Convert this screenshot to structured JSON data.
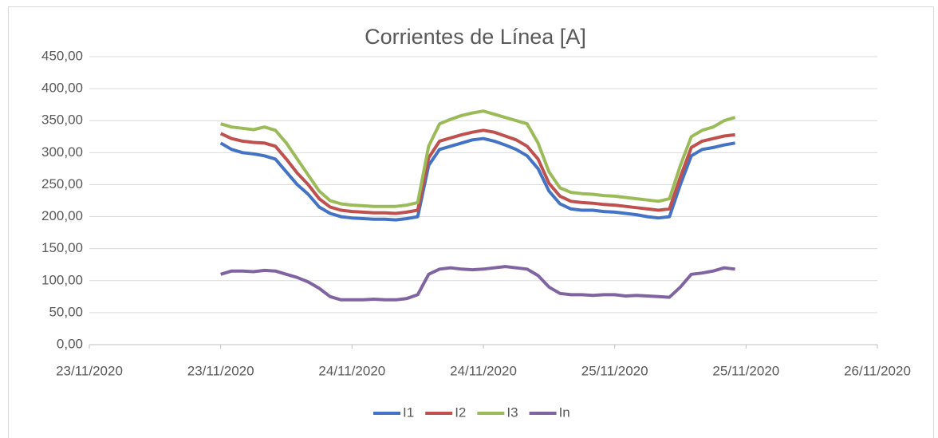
{
  "chart_data": {
    "type": "line",
    "title": "Corrientes de Línea [A]",
    "x": [
      44158.5,
      44158.5417,
      44158.5833,
      44158.625,
      44158.6667,
      44158.7083,
      44158.75,
      44158.7917,
      44158.8333,
      44158.875,
      44158.9167,
      44158.9583,
      44159,
      44159.0417,
      44159.0833,
      44159.125,
      44159.1667,
      44159.2083,
      44159.25,
      44159.2917,
      44159.3333,
      44159.375,
      44159.4167,
      44159.4583,
      44159.5,
      44159.5417,
      44159.5833,
      44159.625,
      44159.6667,
      44159.7083,
      44159.75,
      44159.7917,
      44159.8333,
      44159.875,
      44159.9167,
      44159.9583,
      44160,
      44160.0417,
      44160.0833,
      44160.125,
      44160.1667,
      44160.2083,
      44160.25,
      44160.2917,
      44160.3333,
      44160.375,
      44160.4167,
      44160.4583
    ],
    "series": [
      {
        "name": "I1",
        "color": "#4472c4",
        "values": [
          315,
          305,
          300,
          298,
          295,
          290,
          270,
          250,
          235,
          215,
          205,
          200,
          198,
          197,
          196,
          196,
          195,
          197,
          200,
          280,
          305,
          310,
          315,
          320,
          322,
          318,
          312,
          305,
          295,
          275,
          240,
          220,
          212,
          210,
          210,
          208,
          207,
          205,
          203,
          200,
          198,
          200,
          250,
          295,
          305,
          308,
          312,
          315
        ]
      },
      {
        "name": "I2",
        "color": "#c0504d",
        "values": [
          330,
          322,
          318,
          316,
          315,
          310,
          290,
          268,
          250,
          228,
          215,
          210,
          208,
          207,
          206,
          206,
          205,
          207,
          210,
          292,
          318,
          323,
          328,
          332,
          335,
          332,
          326,
          320,
          310,
          290,
          252,
          232,
          224,
          222,
          221,
          219,
          218,
          216,
          214,
          212,
          210,
          212,
          262,
          308,
          318,
          322,
          326,
          328
        ]
      },
      {
        "name": "I3",
        "color": "#9bbb59",
        "values": [
          345,
          340,
          338,
          336,
          340,
          335,
          315,
          290,
          265,
          240,
          225,
          220,
          218,
          217,
          216,
          216,
          216,
          218,
          222,
          310,
          345,
          352,
          358,
          362,
          365,
          360,
          355,
          350,
          345,
          315,
          270,
          245,
          238,
          236,
          235,
          233,
          232,
          230,
          228,
          226,
          224,
          228,
          280,
          325,
          335,
          340,
          350,
          355
        ]
      },
      {
        "name": "In",
        "color": "#8064a2",
        "values": [
          110,
          115,
          115,
          114,
          116,
          115,
          110,
          105,
          98,
          88,
          75,
          70,
          70,
          70,
          71,
          70,
          70,
          72,
          78,
          110,
          118,
          120,
          118,
          117,
          118,
          120,
          122,
          120,
          118,
          108,
          90,
          80,
          78,
          78,
          77,
          78,
          78,
          76,
          77,
          76,
          75,
          74,
          90,
          110,
          112,
          115,
          120,
          118
        ]
      }
    ],
    "xlim": [
      44158,
      44161
    ],
    "xticks": [
      {
        "value": 44158,
        "label": "23/11/2020"
      },
      {
        "value": 44158.5,
        "label": "23/11/2020"
      },
      {
        "value": 44159,
        "label": "24/11/2020"
      },
      {
        "value": 44159.5,
        "label": "24/11/2020"
      },
      {
        "value": 44160,
        "label": "25/11/2020"
      },
      {
        "value": 44160.5,
        "label": "25/11/2020"
      },
      {
        "value": 44161,
        "label": "26/11/2020"
      }
    ],
    "ylim": [
      0,
      450
    ],
    "yticks": [
      {
        "value": 0,
        "label": "0,00"
      },
      {
        "value": 50,
        "label": "50,00"
      },
      {
        "value": 100,
        "label": "100,00"
      },
      {
        "value": 150,
        "label": "150,00"
      },
      {
        "value": 200,
        "label": "200,00"
      },
      {
        "value": 250,
        "label": "250,00"
      },
      {
        "value": 300,
        "label": "300,00"
      },
      {
        "value": 350,
        "label": "350,00"
      },
      {
        "value": 400,
        "label": "400,00"
      },
      {
        "value": 450,
        "label": "450,00"
      }
    ],
    "grid": true,
    "legend": "bottom"
  }
}
